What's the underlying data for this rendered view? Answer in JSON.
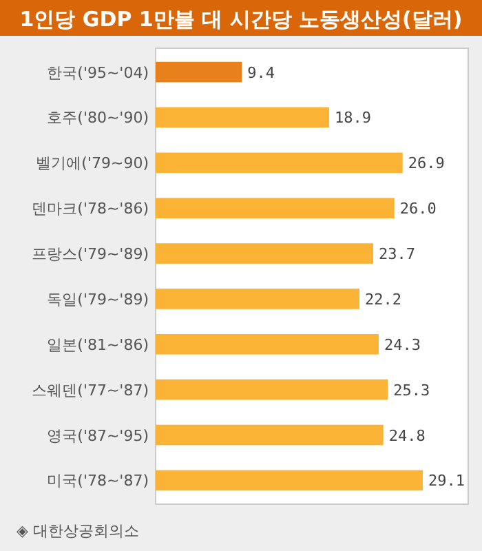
{
  "chart_data": {
    "type": "bar",
    "orientation": "horizontal",
    "title": "1인당 GDP 1만불 대 시간당 노동생산성(달러)",
    "categories": [
      "한국('95~'04)",
      "호주('80~'90)",
      "벨기에('79~90)",
      "덴마크('78~'86)",
      "프랑스('79~'89)",
      "독일('79~'89)",
      "일본('81~'86)",
      "스웨덴('77~'87)",
      "영국('87~'95)",
      "미국('78~'87)"
    ],
    "values": [
      9.4,
      18.9,
      26.9,
      26.0,
      23.7,
      22.2,
      24.3,
      25.3,
      24.8,
      29.1
    ],
    "value_labels": [
      "9.4",
      "18.9",
      "26.9",
      "26.0",
      "23.7",
      "22.2",
      "24.3",
      "25.3",
      "24.8",
      "29.1"
    ],
    "colors": [
      "#e8801c",
      "#fbb335",
      "#fbb335",
      "#fbb335",
      "#fbb335",
      "#fbb335",
      "#fbb335",
      "#fbb335",
      "#fbb335",
      "#fbb335"
    ],
    "annotations": [
      "◈ 대한상공회의소"
    ]
  }
}
